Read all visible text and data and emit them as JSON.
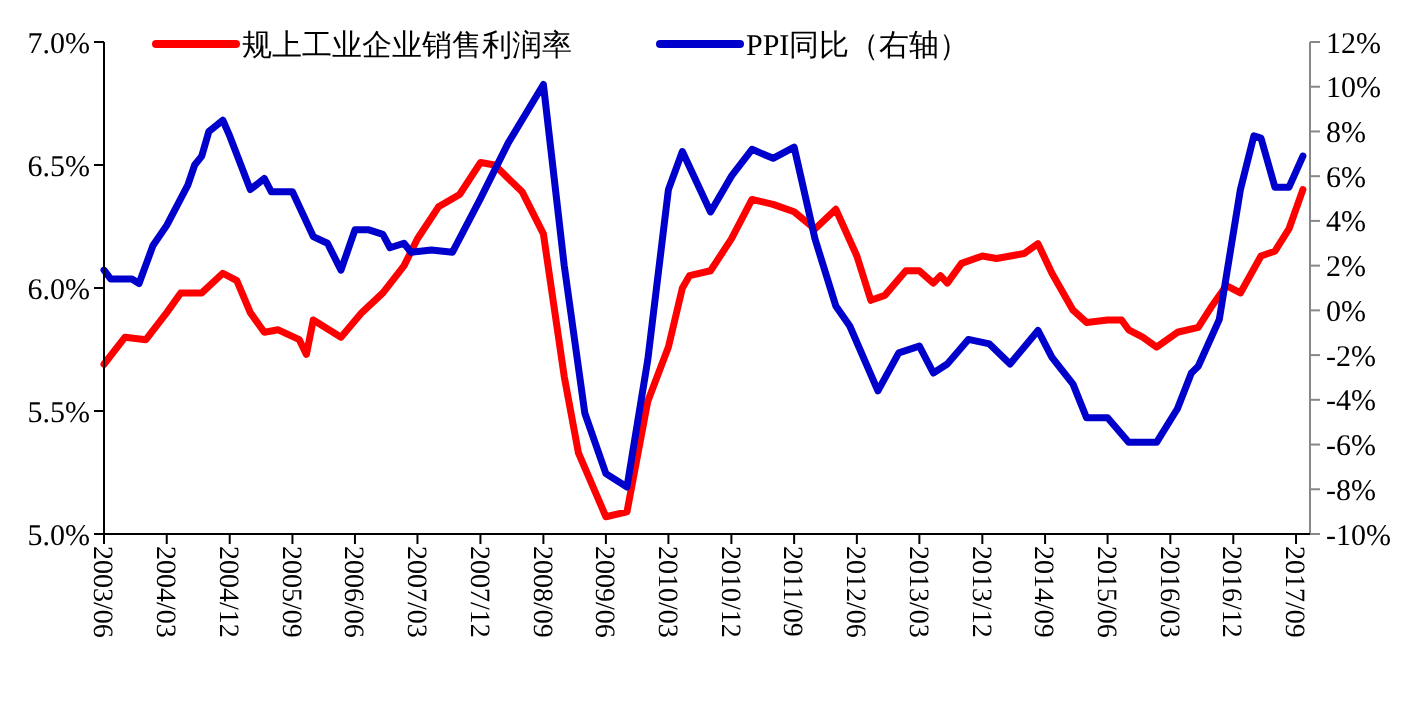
{
  "chart_data": {
    "type": "line",
    "xlim": [
      "2003-06",
      "2017-11"
    ],
    "xticks": [
      {
        "value": "2003-06",
        "label": "2003/06"
      },
      {
        "value": "2004-03",
        "label": "2004/03"
      },
      {
        "value": "2004-12",
        "label": "2004/12"
      },
      {
        "value": "2005-09",
        "label": "2005/09"
      },
      {
        "value": "2006-06",
        "label": "2006/06"
      },
      {
        "value": "2007-03",
        "label": "2007/03"
      },
      {
        "value": "2007-12",
        "label": "2007/12"
      },
      {
        "value": "2008-09",
        "label": "2008/09"
      },
      {
        "value": "2009-06",
        "label": "2009/06"
      },
      {
        "value": "2010-03",
        "label": "2010/03"
      },
      {
        "value": "2010-12",
        "label": "2010/12"
      },
      {
        "value": "2011-09",
        "label": "2011/09"
      },
      {
        "value": "2012-06",
        "label": "2012/06"
      },
      {
        "value": "2013-03",
        "label": "2013/03"
      },
      {
        "value": "2013-12",
        "label": "2013/12"
      },
      {
        "value": "2014-09",
        "label": "2014/09"
      },
      {
        "value": "2015-06",
        "label": "2015/06"
      },
      {
        "value": "2016-03",
        "label": "2016/03"
      },
      {
        "value": "2016-12",
        "label": "2016/12"
      },
      {
        "value": "2017-09",
        "label": "2017/09"
      }
    ],
    "ylim": [
      5.0,
      7.0
    ],
    "yticks": [
      {
        "value": 5.0,
        "label": "5.0%"
      },
      {
        "value": 5.5,
        "label": "5.5%"
      },
      {
        "value": 6.0,
        "label": "6.0%"
      },
      {
        "value": 6.5,
        "label": "6.5%"
      },
      {
        "value": 7.0,
        "label": "7.0%"
      }
    ],
    "y2lim": [
      -10,
      12
    ],
    "y2ticks": [
      {
        "value": -10,
        "label": "-10%"
      },
      {
        "value": -8,
        "label": "-8%"
      },
      {
        "value": -6,
        "label": "-6%"
      },
      {
        "value": -4,
        "label": "-4%"
      },
      {
        "value": -2,
        "label": "-2%"
      },
      {
        "value": 0,
        "label": "0%"
      },
      {
        "value": 2,
        "label": "2%"
      },
      {
        "value": 4,
        "label": "4%"
      },
      {
        "value": 6,
        "label": "6%"
      },
      {
        "value": 8,
        "label": "8%"
      },
      {
        "value": 10,
        "label": "10%"
      },
      {
        "value": 12,
        "label": "12%"
      }
    ],
    "grid": false,
    "legend": "top",
    "marker": "none",
    "line_style": "solid",
    "series": [
      {
        "name": "规上工业企业销售利润率",
        "color": "#ff0000",
        "x": [
          "2003-06",
          "2003-09",
          "2003-12",
          "2004-03",
          "2004-05",
          "2004-08",
          "2004-11",
          "2005-01",
          "2005-03",
          "2005-05",
          "2005-07",
          "2005-10",
          "2005-11",
          "2005-12",
          "2006-04",
          "2006-07",
          "2006-10",
          "2007-01",
          "2007-03",
          "2007-06",
          "2007-09",
          "2007-12",
          "2008-02",
          "2008-06",
          "2008-09",
          "2008-12",
          "2009-02",
          "2009-06",
          "2009-09",
          "2009-12",
          "2010-03",
          "2010-05",
          "2010-06",
          "2010-09",
          "2010-12",
          "2011-03",
          "2011-06",
          "2011-09",
          "2011-12",
          "2012-03",
          "2012-06",
          "2012-08",
          "2012-10",
          "2013-01",
          "2013-03",
          "2013-05",
          "2013-06",
          "2013-07",
          "2013-09",
          "2013-12",
          "2014-02",
          "2014-06",
          "2014-08",
          "2014-10",
          "2015-01",
          "2015-03",
          "2015-06",
          "2015-08",
          "2015-09",
          "2015-11",
          "2016-01",
          "2016-04",
          "2016-07",
          "2016-09",
          "2016-11",
          "2017-01",
          "2017-04",
          "2017-06",
          "2017-08",
          "2017-10"
        ],
        "values": [
          5.69,
          5.8,
          5.79,
          5.9,
          5.98,
          5.98,
          6.06,
          6.03,
          5.9,
          5.82,
          5.83,
          5.79,
          5.73,
          5.87,
          5.8,
          5.9,
          5.98,
          6.09,
          6.2,
          6.33,
          6.38,
          6.51,
          6.5,
          6.39,
          6.22,
          5.64,
          5.33,
          5.07,
          5.09,
          5.54,
          5.76,
          6.0,
          6.05,
          6.07,
          6.2,
          6.36,
          6.34,
          6.31,
          6.24,
          6.32,
          6.13,
          5.95,
          5.97,
          6.07,
          6.07,
          6.02,
          6.05,
          6.02,
          6.1,
          6.13,
          6.12,
          6.14,
          6.18,
          6.06,
          5.91,
          5.86,
          5.87,
          5.87,
          5.83,
          5.8,
          5.76,
          5.82,
          5.84,
          5.93,
          6.01,
          5.98,
          6.13,
          6.15,
          6.24,
          6.4
        ]
      },
      {
        "name": "PPI同比（右轴）",
        "color": "#0000cc",
        "axis": "y2",
        "x": [
          "2003-06",
          "2003-07",
          "2003-10",
          "2003-11",
          "2004-01",
          "2004-03",
          "2004-06",
          "2004-07",
          "2004-08",
          "2004-09",
          "2004-11",
          "2004-12",
          "2005-03",
          "2005-05",
          "2005-06",
          "2005-09",
          "2005-12",
          "2006-02",
          "2006-04",
          "2006-06",
          "2006-08",
          "2006-10",
          "2006-11",
          "2007-01",
          "2007-02",
          "2007-05",
          "2007-08",
          "2007-12",
          "2008-04",
          "2008-09",
          "2008-12",
          "2009-03",
          "2009-06",
          "2009-09",
          "2009-12",
          "2010-03",
          "2010-05",
          "2010-09",
          "2010-12",
          "2011-03",
          "2011-06",
          "2011-09",
          "2011-12",
          "2012-03",
          "2012-05",
          "2012-09",
          "2012-12",
          "2013-03",
          "2013-05",
          "2013-07",
          "2013-10",
          "2014-01",
          "2014-04",
          "2014-08",
          "2014-10",
          "2015-01",
          "2015-03",
          "2015-06",
          "2015-09",
          "2016-01",
          "2016-04",
          "2016-06",
          "2016-07",
          "2016-10",
          "2017-01",
          "2017-03",
          "2017-04",
          "2017-06",
          "2017-08",
          "2017-10"
        ],
        "values": [
          1.8,
          1.4,
          1.4,
          1.2,
          2.9,
          3.8,
          5.6,
          6.5,
          6.9,
          8.0,
          8.5,
          7.8,
          5.4,
          5.9,
          5.3,
          5.3,
          3.3,
          3.0,
          1.8,
          3.6,
          3.6,
          3.4,
          2.8,
          3.0,
          2.6,
          2.7,
          2.6,
          5.0,
          7.5,
          10.1,
          2.0,
          -4.6,
          -7.3,
          -7.9,
          -2.2,
          5.4,
          7.1,
          4.4,
          6.0,
          7.2,
          6.8,
          7.3,
          3.2,
          0.2,
          -0.7,
          -3.6,
          -1.9,
          -1.6,
          -2.8,
          -2.4,
          -1.3,
          -1.5,
          -2.4,
          -0.9,
          -2.1,
          -3.3,
          -4.8,
          -4.8,
          -5.9,
          -5.9,
          -4.4,
          -2.8,
          -2.5,
          -0.4,
          5.4,
          7.8,
          7.7,
          5.5,
          5.5,
          6.9
        ]
      }
    ]
  }
}
